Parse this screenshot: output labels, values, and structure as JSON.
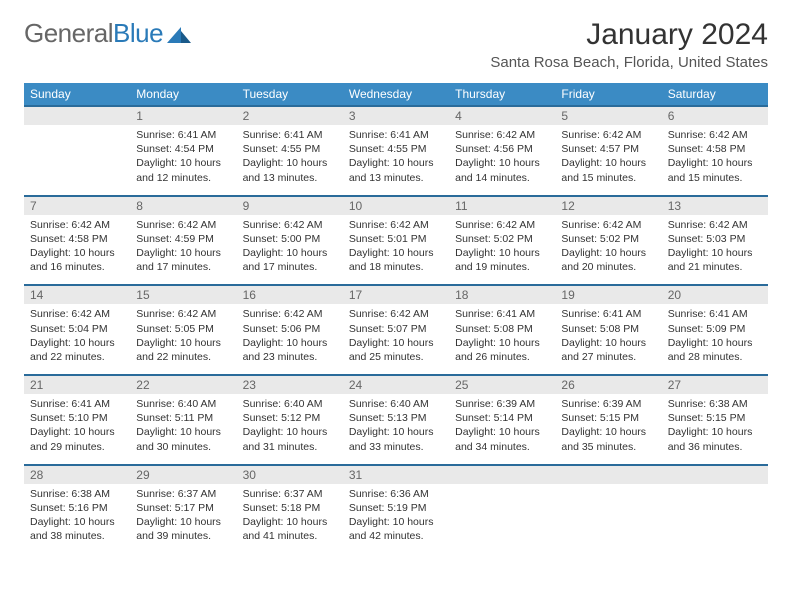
{
  "logo": {
    "text_general": "General",
    "text_blue": "Blue"
  },
  "header": {
    "month_title": "January 2024",
    "location": "Santa Rosa Beach, Florida, United States"
  },
  "dow": [
    "Sunday",
    "Monday",
    "Tuesday",
    "Wednesday",
    "Thursday",
    "Friday",
    "Saturday"
  ],
  "colors": {
    "header_bg": "#3b8bc4",
    "header_border": "#2a6b9a",
    "daynum_bg": "#e9e9e9"
  },
  "weeks": [
    {
      "nums": [
        "",
        "1",
        "2",
        "3",
        "4",
        "5",
        "6"
      ],
      "details": [
        "",
        "Sunrise: 6:41 AM\nSunset: 4:54 PM\nDaylight: 10 hours and 12 minutes.",
        "Sunrise: 6:41 AM\nSunset: 4:55 PM\nDaylight: 10 hours and 13 minutes.",
        "Sunrise: 6:41 AM\nSunset: 4:55 PM\nDaylight: 10 hours and 13 minutes.",
        "Sunrise: 6:42 AM\nSunset: 4:56 PM\nDaylight: 10 hours and 14 minutes.",
        "Sunrise: 6:42 AM\nSunset: 4:57 PM\nDaylight: 10 hours and 15 minutes.",
        "Sunrise: 6:42 AM\nSunset: 4:58 PM\nDaylight: 10 hours and 15 minutes."
      ]
    },
    {
      "nums": [
        "7",
        "8",
        "9",
        "10",
        "11",
        "12",
        "13"
      ],
      "details": [
        "Sunrise: 6:42 AM\nSunset: 4:58 PM\nDaylight: 10 hours and 16 minutes.",
        "Sunrise: 6:42 AM\nSunset: 4:59 PM\nDaylight: 10 hours and 17 minutes.",
        "Sunrise: 6:42 AM\nSunset: 5:00 PM\nDaylight: 10 hours and 17 minutes.",
        "Sunrise: 6:42 AM\nSunset: 5:01 PM\nDaylight: 10 hours and 18 minutes.",
        "Sunrise: 6:42 AM\nSunset: 5:02 PM\nDaylight: 10 hours and 19 minutes.",
        "Sunrise: 6:42 AM\nSunset: 5:02 PM\nDaylight: 10 hours and 20 minutes.",
        "Sunrise: 6:42 AM\nSunset: 5:03 PM\nDaylight: 10 hours and 21 minutes."
      ]
    },
    {
      "nums": [
        "14",
        "15",
        "16",
        "17",
        "18",
        "19",
        "20"
      ],
      "details": [
        "Sunrise: 6:42 AM\nSunset: 5:04 PM\nDaylight: 10 hours and 22 minutes.",
        "Sunrise: 6:42 AM\nSunset: 5:05 PM\nDaylight: 10 hours and 22 minutes.",
        "Sunrise: 6:42 AM\nSunset: 5:06 PM\nDaylight: 10 hours and 23 minutes.",
        "Sunrise: 6:42 AM\nSunset: 5:07 PM\nDaylight: 10 hours and 25 minutes.",
        "Sunrise: 6:41 AM\nSunset: 5:08 PM\nDaylight: 10 hours and 26 minutes.",
        "Sunrise: 6:41 AM\nSunset: 5:08 PM\nDaylight: 10 hours and 27 minutes.",
        "Sunrise: 6:41 AM\nSunset: 5:09 PM\nDaylight: 10 hours and 28 minutes."
      ]
    },
    {
      "nums": [
        "21",
        "22",
        "23",
        "24",
        "25",
        "26",
        "27"
      ],
      "details": [
        "Sunrise: 6:41 AM\nSunset: 5:10 PM\nDaylight: 10 hours and 29 minutes.",
        "Sunrise: 6:40 AM\nSunset: 5:11 PM\nDaylight: 10 hours and 30 minutes.",
        "Sunrise: 6:40 AM\nSunset: 5:12 PM\nDaylight: 10 hours and 31 minutes.",
        "Sunrise: 6:40 AM\nSunset: 5:13 PM\nDaylight: 10 hours and 33 minutes.",
        "Sunrise: 6:39 AM\nSunset: 5:14 PM\nDaylight: 10 hours and 34 minutes.",
        "Sunrise: 6:39 AM\nSunset: 5:15 PM\nDaylight: 10 hours and 35 minutes.",
        "Sunrise: 6:38 AM\nSunset: 5:15 PM\nDaylight: 10 hours and 36 minutes."
      ]
    },
    {
      "nums": [
        "28",
        "29",
        "30",
        "31",
        "",
        "",
        ""
      ],
      "details": [
        "Sunrise: 6:38 AM\nSunset: 5:16 PM\nDaylight: 10 hours and 38 minutes.",
        "Sunrise: 6:37 AM\nSunset: 5:17 PM\nDaylight: 10 hours and 39 minutes.",
        "Sunrise: 6:37 AM\nSunset: 5:18 PM\nDaylight: 10 hours and 41 minutes.",
        "Sunrise: 6:36 AM\nSunset: 5:19 PM\nDaylight: 10 hours and 42 minutes.",
        "",
        "",
        ""
      ]
    }
  ]
}
